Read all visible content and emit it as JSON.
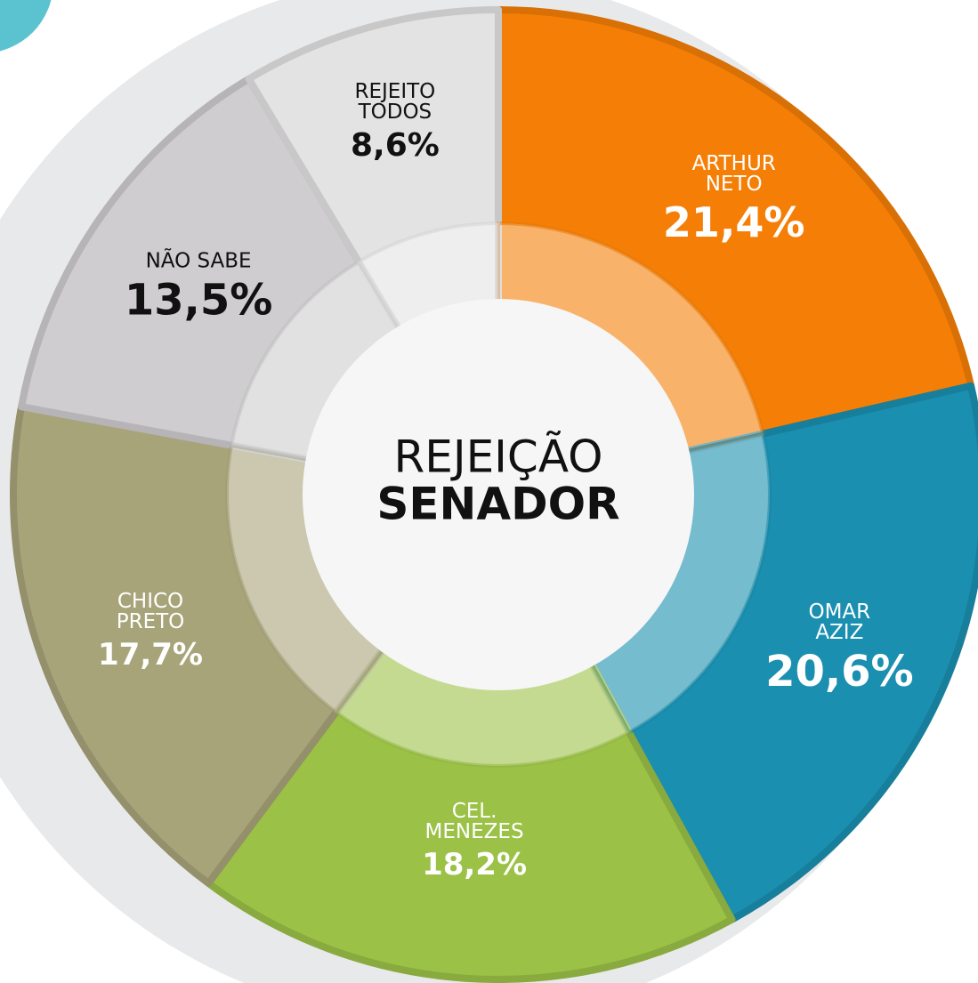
{
  "chart_data": {
    "type": "donut",
    "title": "REJEIÇÃO",
    "subtitle": "SENADOR",
    "categories": [
      "ARTHUR\nNETO",
      "OMAR\nAZIZ",
      "CEL.\nMENEZES",
      "CHICO\nPRETO",
      "NÃO SABE",
      "REJEITO\nTODOS"
    ],
    "values": [
      21.4,
      20.6,
      18.2,
      17.7,
      13.5,
      8.6
    ],
    "value_labels": [
      "21,4%",
      "20,6%",
      "18,2%",
      "17,7%",
      "13,5%",
      "8,6%"
    ],
    "colors": [
      "#f57f06",
      "#1a8fb0",
      "#9bc146",
      "#a8a47a",
      "#cfcdcf",
      "#e4e3e4"
    ]
  }
}
